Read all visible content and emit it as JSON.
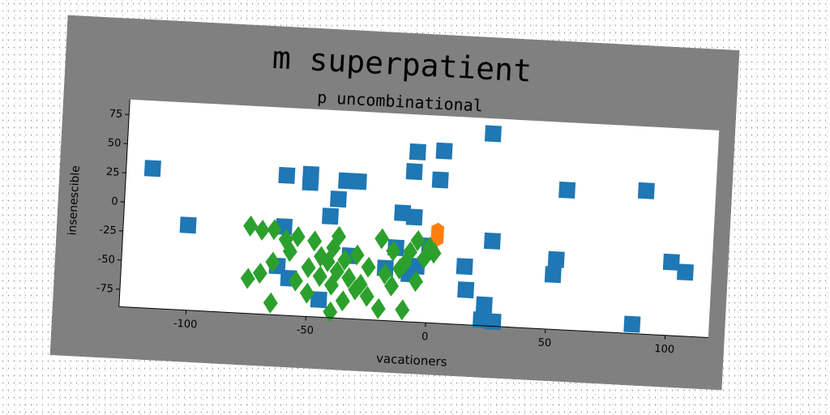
{
  "chart_data": {
    "type": "scatter",
    "title": "m superpatient",
    "subtitle": "p uncombinational",
    "xlabel": "vacationers",
    "ylabel": "insenescible",
    "xlim": [
      -128,
      118
    ],
    "ylim": [
      -90,
      88
    ],
    "xticks": [
      -100,
      -50,
      0,
      50,
      100
    ],
    "yticks": [
      75,
      50,
      25,
      0,
      -25,
      -50,
      -75
    ],
    "grid": false,
    "legend": "none",
    "colors": {
      "figure_bg": "#808080",
      "plot_bg": "#ffffff",
      "series_blue": "#1f77b4",
      "series_orange": "#ff7f0e",
      "series_green": "#2ca02c"
    },
    "series": [
      {
        "marker": "square",
        "color": "#1f77b4",
        "points": [
          [
            -117,
            30
          ],
          [
            -101,
            -17
          ],
          [
            -61,
            30
          ],
          [
            -51,
            32
          ],
          [
            -51,
            25
          ],
          [
            -36,
            28
          ],
          [
            -31,
            28
          ],
          [
            -39,
            12
          ],
          [
            -42,
            -3
          ],
          [
            -61,
            -14
          ],
          [
            -33,
            -36
          ],
          [
            -63,
            -48
          ],
          [
            -58,
            -58
          ],
          [
            -45,
            -75
          ],
          [
            -14,
            -27
          ],
          [
            -12,
            3
          ],
          [
            -7,
            0
          ],
          [
            -8,
            -49
          ],
          [
            -8,
            39
          ],
          [
            -7,
            56
          ],
          [
            3,
            33
          ],
          [
            4,
            58
          ],
          [
            -5,
            -42
          ],
          [
            0,
            -24
          ],
          [
            -18,
            -45
          ],
          [
            24,
            75
          ],
          [
            15,
            -40
          ],
          [
            16,
            -60
          ],
          [
            24,
            -72
          ],
          [
            23,
            -85
          ],
          [
            28,
            -86
          ],
          [
            26,
            -17
          ],
          [
            53,
            -30
          ],
          [
            52,
            -43
          ],
          [
            56,
            30
          ],
          [
            86,
            -82
          ],
          [
            89,
            33
          ],
          [
            101,
            -27
          ],
          [
            107,
            -35
          ]
        ]
      },
      {
        "marker": "hexagon",
        "color": "#ff7f0e",
        "points": [
          [
            3,
            -10
          ],
          [
            3,
            -14
          ],
          [
            3,
            -18
          ]
        ]
      },
      {
        "marker": "diamond",
        "color": "#2ca02c",
        "points": [
          [
            -75,
            -15
          ],
          [
            -70,
            -18
          ],
          [
            -65,
            -17
          ],
          [
            -60,
            -25
          ],
          [
            -58,
            -35
          ],
          [
            -55,
            -22
          ],
          [
            -48,
            -25
          ],
          [
            -45,
            -38
          ],
          [
            -40,
            -30
          ],
          [
            -38,
            -20
          ],
          [
            -35,
            -40
          ],
          [
            -30,
            -35
          ],
          [
            -25,
            -45
          ],
          [
            -20,
            -20
          ],
          [
            -18,
            -50
          ],
          [
            -15,
            -30
          ],
          [
            -10,
            -40
          ],
          [
            -5,
            -20
          ],
          [
            0,
            -25
          ],
          [
            -2,
            -35
          ],
          [
            -8,
            -30
          ],
          [
            -12,
            -45
          ],
          [
            -28,
            -60
          ],
          [
            -33,
            -55
          ],
          [
            -40,
            -62
          ],
          [
            -45,
            -55
          ],
          [
            -50,
            -48
          ],
          [
            -55,
            -60
          ],
          [
            -65,
            -45
          ],
          [
            -70,
            -55
          ],
          [
            -75,
            -60
          ],
          [
            -65,
            -80
          ],
          [
            -40,
            -85
          ],
          [
            -35,
            -75
          ],
          [
            -25,
            -70
          ],
          [
            -20,
            -80
          ],
          [
            -10,
            -80
          ],
          [
            -15,
            -60
          ],
          [
            -50,
            -70
          ],
          [
            -38,
            -50
          ],
          [
            -30,
            -65
          ],
          [
            -42,
            -42
          ],
          [
            -5,
            -55
          ],
          [
            2,
            -30
          ]
        ]
      }
    ]
  }
}
